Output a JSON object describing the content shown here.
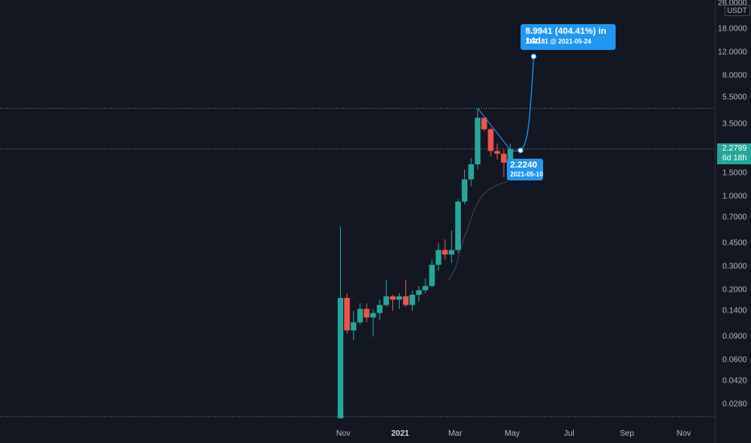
{
  "chart_data": {
    "type": "candlestick",
    "pair_quote": "USDT",
    "y_scale": "log",
    "y_ticks": [
      "28.0000",
      "18.0000",
      "12.0000",
      "8.0000",
      "5.5000",
      "3.5000",
      "2.2799",
      "1.5000",
      "1.0000",
      "0.7000",
      "0.4500",
      "0.3000",
      "0.2000",
      "0.1400",
      "0.0900",
      "0.0600",
      "0.0420",
      "0.0280"
    ],
    "y_tick_values": [
      28,
      18,
      12,
      8,
      5.5,
      3.5,
      1.5,
      1.0,
      0.7,
      0.45,
      0.3,
      0.2,
      0.14,
      0.09,
      0.06,
      0.042,
      0.028
    ],
    "x_ticks": [
      {
        "label": "Nov",
        "date": "2020-11-01",
        "bold": false
      },
      {
        "label": "2021",
        "date": "2021-01-01",
        "bold": true
      },
      {
        "label": "Mar",
        "date": "2021-03-01",
        "bold": false
      },
      {
        "label": "May",
        "date": "2021-05-01",
        "bold": false
      },
      {
        "label": "Jul",
        "date": "2021-07-01",
        "bold": false
      },
      {
        "label": "Sep",
        "date": "2021-09-01",
        "bold": false
      },
      {
        "label": "Nov",
        "date": "2021-11-01",
        "bold": false
      }
    ],
    "last_price": "2.2799",
    "countdown": "6d 18h",
    "candles": [
      {
        "date": "2020-10-26",
        "o": 0.022,
        "h": 0.6,
        "l": 0.022,
        "c": 0.175
      },
      {
        "date": "2020-11-02",
        "o": 0.175,
        "h": 0.19,
        "l": 0.095,
        "c": 0.1
      },
      {
        "date": "2020-11-09",
        "o": 0.1,
        "h": 0.14,
        "l": 0.085,
        "c": 0.115
      },
      {
        "date": "2020-11-16",
        "o": 0.115,
        "h": 0.16,
        "l": 0.11,
        "c": 0.145
      },
      {
        "date": "2020-11-23",
        "o": 0.145,
        "h": 0.16,
        "l": 0.115,
        "c": 0.125
      },
      {
        "date": "2020-11-30",
        "o": 0.125,
        "h": 0.145,
        "l": 0.09,
        "c": 0.135
      },
      {
        "date": "2020-12-07",
        "o": 0.135,
        "h": 0.17,
        "l": 0.12,
        "c": 0.155
      },
      {
        "date": "2020-12-14",
        "o": 0.155,
        "h": 0.24,
        "l": 0.15,
        "c": 0.18
      },
      {
        "date": "2020-12-21",
        "o": 0.18,
        "h": 0.185,
        "l": 0.14,
        "c": 0.17
      },
      {
        "date": "2020-12-28",
        "o": 0.17,
        "h": 0.19,
        "l": 0.145,
        "c": 0.18
      },
      {
        "date": "2021-01-04",
        "o": 0.18,
        "h": 0.24,
        "l": 0.15,
        "c": 0.155
      },
      {
        "date": "2021-01-11",
        "o": 0.155,
        "h": 0.2,
        "l": 0.14,
        "c": 0.185
      },
      {
        "date": "2021-01-18",
        "o": 0.185,
        "h": 0.215,
        "l": 0.165,
        "c": 0.2
      },
      {
        "date": "2021-01-25",
        "o": 0.2,
        "h": 0.245,
        "l": 0.19,
        "c": 0.215
      },
      {
        "date": "2021-02-01",
        "o": 0.215,
        "h": 0.34,
        "l": 0.21,
        "c": 0.31
      },
      {
        "date": "2021-02-08",
        "o": 0.31,
        "h": 0.45,
        "l": 0.28,
        "c": 0.4
      },
      {
        "date": "2021-02-15",
        "o": 0.4,
        "h": 0.48,
        "l": 0.34,
        "c": 0.37
      },
      {
        "date": "2021-02-22",
        "o": 0.37,
        "h": 0.56,
        "l": 0.32,
        "c": 0.4
      },
      {
        "date": "2021-03-01",
        "o": 0.4,
        "h": 0.96,
        "l": 0.38,
        "c": 0.92
      },
      {
        "date": "2021-03-08",
        "o": 0.92,
        "h": 1.6,
        "l": 0.88,
        "c": 1.35
      },
      {
        "date": "2021-03-15",
        "o": 1.35,
        "h": 1.95,
        "l": 1.2,
        "c": 1.75
      },
      {
        "date": "2021-03-22",
        "o": 1.75,
        "h": 4.6,
        "l": 1.6,
        "c": 3.9
      },
      {
        "date": "2021-03-29",
        "o": 3.9,
        "h": 3.9,
        "l": 3.1,
        "c": 3.2
      },
      {
        "date": "2021-04-05",
        "o": 3.2,
        "h": 3.3,
        "l": 2.0,
        "c": 2.2
      },
      {
        "date": "2021-04-12",
        "o": 2.2,
        "h": 2.5,
        "l": 1.9,
        "c": 2.1
      },
      {
        "date": "2021-04-19",
        "o": 2.1,
        "h": 2.25,
        "l": 1.4,
        "c": 1.8
      },
      {
        "date": "2021-04-26",
        "o": 1.8,
        "h": 2.5,
        "l": 1.65,
        "c": 2.28
      }
    ],
    "moving_average": [
      {
        "date": "2021-02-22",
        "v": 0.24
      },
      {
        "date": "2021-03-01",
        "v": 0.29
      },
      {
        "date": "2021-03-08",
        "v": 0.44
      },
      {
        "date": "2021-03-15",
        "v": 0.6
      },
      {
        "date": "2021-03-22",
        "v": 0.82
      },
      {
        "date": "2021-03-29",
        "v": 1.0
      },
      {
        "date": "2021-04-05",
        "v": 1.12
      },
      {
        "date": "2021-04-12",
        "v": 1.2
      },
      {
        "date": "2021-04-19",
        "v": 1.26
      },
      {
        "date": "2021-04-26",
        "v": 1.3
      }
    ],
    "horizontal_lines": [
      {
        "value": 4.6,
        "style": "dotted"
      },
      {
        "value": 2.2799,
        "style": "dotted"
      },
      {
        "value": 0.0227,
        "style": "dotted"
      }
    ],
    "trendline": [
      {
        "date": "2021-03-22",
        "v": 4.6
      },
      {
        "date": "2021-04-30",
        "v": 2.2
      }
    ],
    "projection": {
      "start": {
        "date": "2021-05-10",
        "v": 2.224
      },
      "end": {
        "date": "2021-05-24",
        "v": 11.2181
      },
      "change_label": "8.9941 (404.41%) in 14d",
      "target_label": "11.2181 @ 2021-05-24",
      "start_value_label": "2.2240",
      "start_date_label": "2021-05-10"
    },
    "colors": {
      "bg": "#131722",
      "up": "#26a69a",
      "down": "#ef5350",
      "line": "#2196f3",
      "grid": "#9598a1",
      "text": "#b2b5be",
      "ma": "#2b3140"
    }
  }
}
